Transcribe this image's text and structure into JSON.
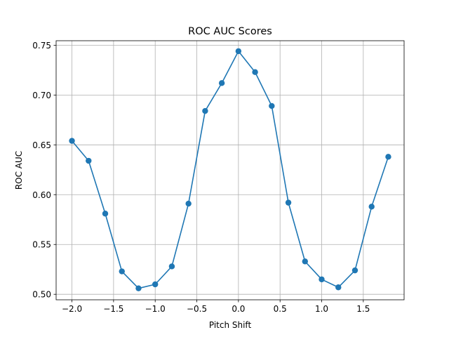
{
  "chart_data": {
    "type": "line",
    "title": "ROC AUC Scores",
    "xlabel": "Pitch Shift",
    "ylabel": "ROC AUC",
    "xlim": [
      -2.19,
      1.99
    ],
    "ylim": [
      0.4945,
      0.7545
    ],
    "grid": true,
    "x_ticks": [
      -2.0,
      -1.5,
      -1.0,
      -0.5,
      0.0,
      0.5,
      1.0,
      1.5
    ],
    "x_tick_labels": [
      "−2.0",
      "−1.5",
      "−1.0",
      "−0.5",
      "0.0",
      "0.5",
      "1.0",
      "1.5"
    ],
    "y_ticks": [
      0.5,
      0.55,
      0.6,
      0.65,
      0.7,
      0.75
    ],
    "y_tick_labels": [
      "0.50",
      "0.55",
      "0.60",
      "0.65",
      "0.70",
      "0.75"
    ],
    "color": "#1f77b4",
    "marker": "circle",
    "series": [
      {
        "x": [
          -2.0,
          -1.8,
          -1.6,
          -1.4,
          -1.2,
          -1.0,
          -0.8,
          -0.6,
          -0.4,
          -0.2,
          0.0,
          0.2,
          0.4,
          0.6,
          0.8,
          1.0,
          1.2,
          1.4,
          1.6,
          1.8
        ],
        "y": [
          0.654,
          0.634,
          0.581,
          0.523,
          0.506,
          0.51,
          0.528,
          0.591,
          0.684,
          0.712,
          0.744,
          0.723,
          0.689,
          0.592,
          0.533,
          0.515,
          0.507,
          0.524,
          0.588,
          0.638
        ]
      }
    ]
  }
}
